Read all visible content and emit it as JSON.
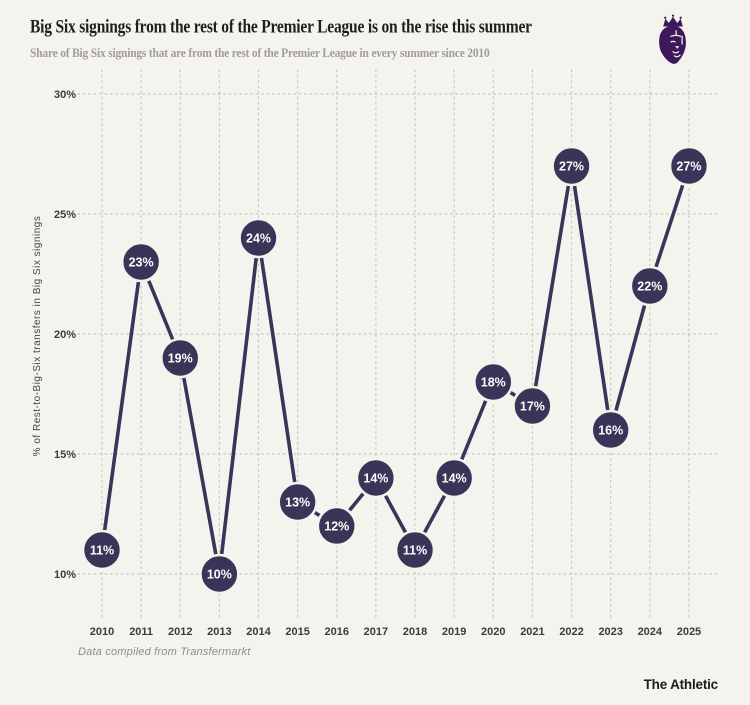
{
  "header": {
    "title": "Big Six signings from the rest of the Premier League is on the rise this summer",
    "subtitle": "Share of Big Six signings that are from the rest of the Premier League in every summer since 2010"
  },
  "branding": {
    "logo_name": "premier-league-lion-crest",
    "logo_color": "#3d195b",
    "attribution": "The Athletic"
  },
  "footer": {
    "source_note": "Data compiled from Transfermarkt"
  },
  "chart_data": {
    "type": "line",
    "title": "Big Six signings from the rest of the Premier League is on the rise this summer",
    "subtitle": "Share of Big Six signings that are from the rest of the Premier League in every summer since 2010",
    "x": [
      "2010",
      "2011",
      "2012",
      "2013",
      "2014",
      "2015",
      "2016",
      "2017",
      "2018",
      "2019",
      "2020",
      "2021",
      "2022",
      "2023",
      "2024",
      "2025"
    ],
    "values": [
      11,
      23,
      19,
      10,
      24,
      13,
      12,
      14,
      11,
      14,
      18,
      17,
      27,
      16,
      22,
      27
    ],
    "point_labels": [
      "11%",
      "23%",
      "19%",
      "10%",
      "24%",
      "13%",
      "12%",
      "14%",
      "11%",
      "14%",
      "18%",
      "17%",
      "27%",
      "16%",
      "22%",
      "27%"
    ],
    "xlabel": "",
    "ylabel": "% of Rest-to-Big-Six transfers in Big Six signings",
    "yticks": [
      30,
      25,
      20,
      15,
      10
    ],
    "ytick_labels": [
      "30%",
      "25%",
      "20%",
      "15%",
      "10%"
    ],
    "ylim": [
      8,
      31
    ],
    "grid": "dotted, both axes",
    "legend": "none",
    "marker_style": "filled circle with value label inside",
    "colors": {
      "background": "#f5f3ee",
      "line": "#3b3459",
      "marker_fill": "#3b3459",
      "marker_outline": "#f5f3ee",
      "marker_text": "#fdfdfc",
      "grid": "#c9c6be",
      "axis_text": "#3e3c38"
    }
  }
}
